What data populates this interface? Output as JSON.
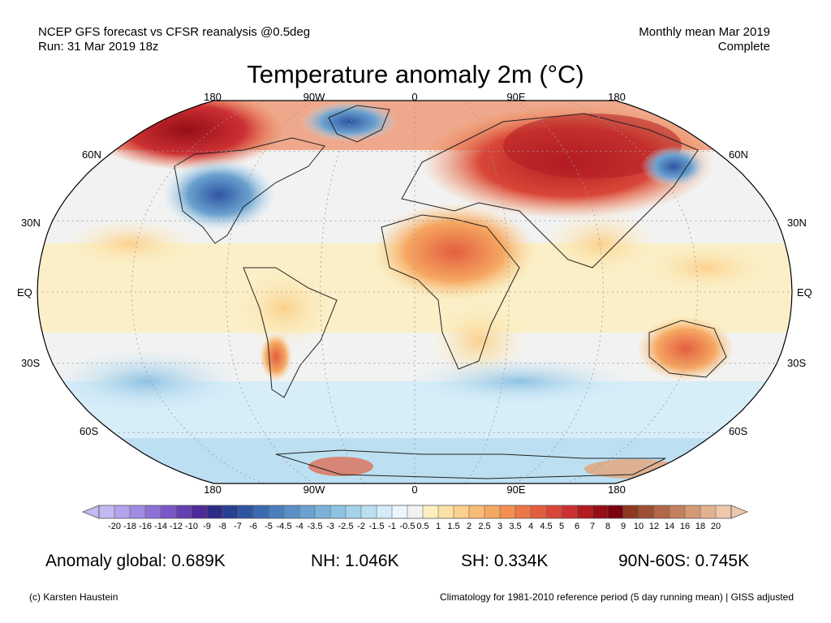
{
  "header": {
    "left_line1": "NCEP GFS forecast vs CFSR reanalysis @0.5deg",
    "left_line2": "Run: 31 Mar 2019 18z",
    "right_line1": "Monthly mean Mar 2019",
    "right_line2": "Complete"
  },
  "title": "Temperature anomaly 2m (°C)",
  "map": {
    "projection": "Robinson",
    "lon_labels_top": [
      "180",
      "90W",
      "0",
      "90E",
      "180"
    ],
    "lon_labels_bottom": [
      "180",
      "90W",
      "0",
      "90E",
      "180"
    ],
    "lat_labels_left": [
      "60N",
      "30N",
      "EQ",
      "30S",
      "60S"
    ],
    "lat_labels_right": [
      "60N",
      "30N",
      "EQ",
      "30S",
      "60S"
    ],
    "colorbar": {
      "labels": [
        "-20",
        "-18",
        "-16",
        "-14",
        "-12",
        "-10",
        "-9",
        "-8",
        "-7",
        "-6",
        "-5",
        "-4.5",
        "-4",
        "-3.5",
        "-3",
        "-2.5",
        "-2",
        "-1.5",
        "-1",
        "-0.5",
        "0.5",
        "1",
        "1.5",
        "2",
        "2.5",
        "3",
        "3.5",
        "4",
        "4.5",
        "5",
        "6",
        "7",
        "8",
        "9",
        "10",
        "12",
        "14",
        "16",
        "18",
        "20"
      ],
      "colors": [
        "#c4b8f0",
        "#b4a2ec",
        "#a08ae2",
        "#8c70d6",
        "#7a58c8",
        "#6440b0",
        "#4e2a98",
        "#2e2a88",
        "#283f92",
        "#2f55a2",
        "#3a6ab0",
        "#4a7ebc",
        "#5a90c6",
        "#6aa2d0",
        "#7cb2da",
        "#8ec2e2",
        "#a4d2ea",
        "#bce0f2",
        "#d4ecf8",
        "#eaf6fc",
        "#f2f2f2",
        "#fcefc0",
        "#fce2a6",
        "#fbd08c",
        "#f9bc76",
        "#f6a762",
        "#f28f50",
        "#ec7646",
        "#e35e3e",
        "#d94638",
        "#cc3034",
        "#b21c22",
        "#960e16",
        "#7a0410",
        "#8e3820",
        "#9e4e34",
        "#b26848",
        "#c4805c",
        "#d49a76",
        "#e2b290",
        "#edc8ac"
      ]
    }
  },
  "stats": {
    "global": "Anomaly global: 0.689K",
    "nh": "NH: 1.046K",
    "sh": "SH: 0.334K",
    "arctic": "90N-60S: 0.745K"
  },
  "footer": {
    "credit": "(c) Karsten Haustein",
    "note": "Climatology for 1981-2010 reference period (5 day running mean) | GISS adjusted"
  }
}
